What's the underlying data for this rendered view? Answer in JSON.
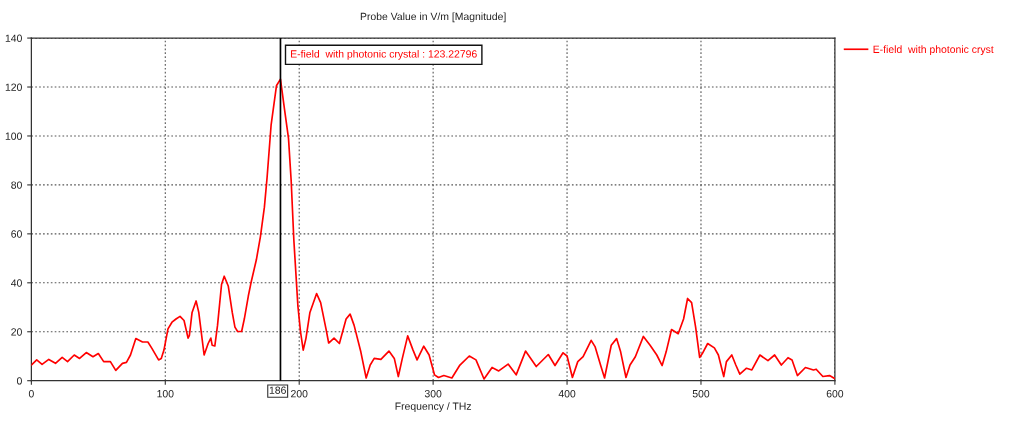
{
  "chart_data": {
    "type": "line",
    "title": "Probe Value in V/m [Magnitude]",
    "xlabel": "Frequency / THz",
    "x": [
      0,
      4,
      8,
      13,
      18,
      23,
      27,
      32,
      36,
      41,
      46,
      50,
      54,
      59,
      63,
      68,
      71,
      74,
      78,
      83,
      87,
      90,
      95,
      97,
      99,
      102,
      105,
      108,
      111,
      114,
      117,
      118,
      120,
      123,
      125,
      129,
      132,
      134,
      135,
      137,
      139,
      142,
      144,
      147,
      150,
      152,
      154,
      157,
      159,
      162,
      164,
      168,
      171,
      174,
      176,
      179,
      183,
      186,
      189,
      192,
      194,
      196,
      199,
      201,
      203,
      205,
      208,
      213,
      216,
      220,
      222,
      226,
      230,
      235,
      238,
      241,
      246,
      250,
      253,
      256,
      261,
      267,
      271,
      274,
      277,
      281,
      285,
      288,
      293,
      297,
      301,
      304,
      308,
      314,
      320,
      327,
      332,
      338,
      344,
      349,
      356,
      362,
      369,
      377,
      386,
      391,
      397,
      400,
      404,
      408,
      412,
      418,
      421,
      425,
      428,
      433,
      437,
      440,
      444,
      447,
      451,
      457,
      462,
      467,
      471,
      474,
      478,
      483,
      487,
      490,
      493,
      496,
      499,
      501,
      505,
      510,
      513,
      517,
      519,
      523,
      526,
      529,
      534,
      538,
      544,
      550,
      555,
      560,
      565,
      568,
      572,
      578,
      584,
      586,
      591,
      596,
      600
    ],
    "series": [
      {
        "name": "E-field  with photonic cryst",
        "color": "#ff0000",
        "values": [
          6.4,
          8.5,
          6.7,
          8.7,
          7.1,
          9.5,
          7.8,
          10.5,
          9.1,
          11.5,
          9.8,
          11.1,
          7.8,
          7.8,
          4.2,
          7.1,
          7.5,
          10.5,
          17.2,
          15.8,
          15.8,
          13.2,
          8.5,
          9.1,
          12.5,
          21.2,
          23.9,
          25.2,
          26.3,
          24.6,
          17.4,
          18.5,
          27.9,
          32.6,
          27.9,
          10.5,
          15.2,
          17.4,
          14.5,
          14.2,
          22.6,
          39.3,
          42.7,
          38.7,
          27.9,
          21.9,
          20.1,
          20.1,
          25.2,
          34.6,
          40.0,
          49.4,
          58.8,
          70.9,
          83.0,
          104.4,
          120.5,
          123.22796,
          111.0,
          99.0,
          81.6,
          57.4,
          30.6,
          19.9,
          12.5,
          17.2,
          27.9,
          35.6,
          31.9,
          21.2,
          15.4,
          17.4,
          15.2,
          25.2,
          27.2,
          22.6,
          11.8,
          1.1,
          6.4,
          9.1,
          8.7,
          12.1,
          9.1,
          1.7,
          9.1,
          18.3,
          12.5,
          8.5,
          14.1,
          10.5,
          2.4,
          1.3,
          2.1,
          1.1,
          6.4,
          10.1,
          8.5,
          0.7,
          5.4,
          4.0,
          6.8,
          2.4,
          12.1,
          5.8,
          10.7,
          6.2,
          11.4,
          10.1,
          1.3,
          7.8,
          9.8,
          16.5,
          13.8,
          6.4,
          1.1,
          14.5,
          17.2,
          11.8,
          1.3,
          6.4,
          9.8,
          18.1,
          14.5,
          10.5,
          6.2,
          11.8,
          20.9,
          19.2,
          25.2,
          33.6,
          31.9,
          21.9,
          9.5,
          11.1,
          15.2,
          13.4,
          10.5,
          1.7,
          7.8,
          10.5,
          6.4,
          2.7,
          5.1,
          4.4,
          10.5,
          8.2,
          10.5,
          6.4,
          9.4,
          8.5,
          2.1,
          5.4,
          4.4,
          4.7,
          1.7,
          2.1,
          0.8
        ]
      }
    ],
    "xlim": [
      0,
      600
    ],
    "ylim": [
      0,
      140
    ],
    "xticks": [
      0,
      100,
      200,
      300,
      400,
      500,
      600
    ],
    "yticks": [
      0,
      20,
      40,
      60,
      80,
      100,
      120,
      140
    ],
    "grid": true,
    "legend": "top right",
    "line_style": "solid",
    "ref_lines": [
      {
        "axis": "x",
        "value": 186,
        "label": "186",
        "color": "#000000",
        "line_style": "solid"
      }
    ],
    "annotations": [
      {
        "text": "E-field  with photonic crystal : 123.22796",
        "x": 186,
        "y": 123.22796
      }
    ]
  }
}
